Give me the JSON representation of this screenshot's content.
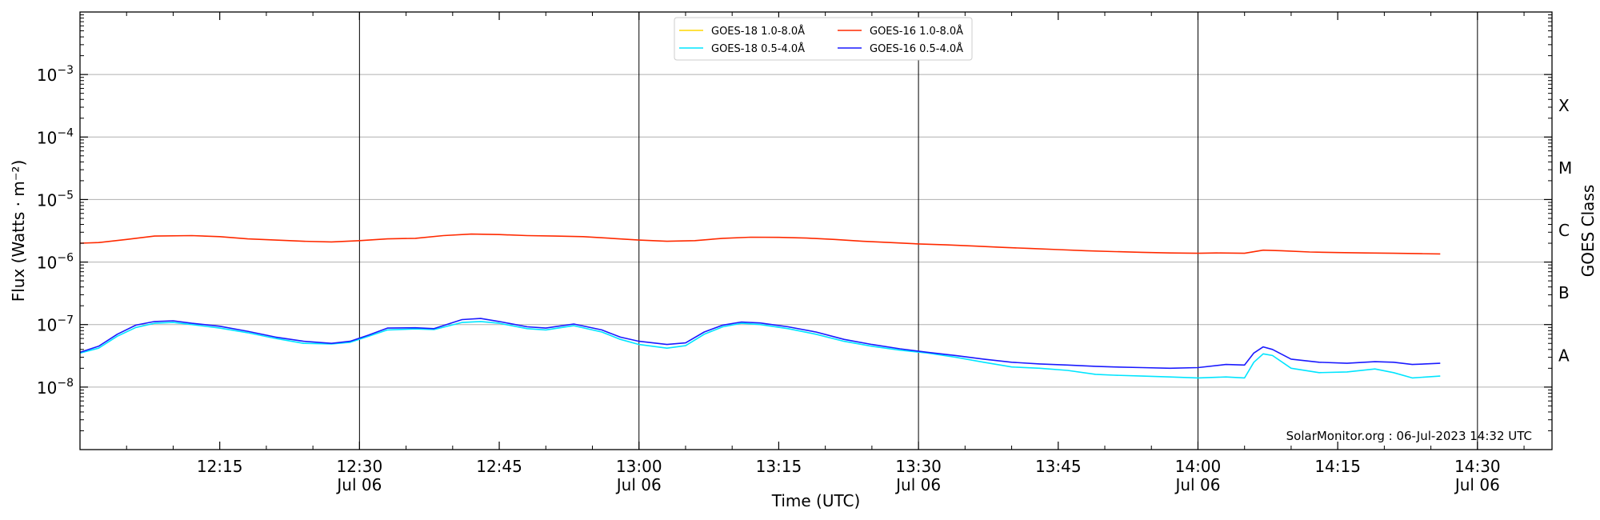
{
  "chart_data": {
    "type": "line",
    "xlabel": "Time (UTC)",
    "ylabel": "Flux (Watts · m⁻²)",
    "y2label": "GOES Class",
    "yscale": "log",
    "ylim": [
      1e-09,
      0.01
    ],
    "xlim": [
      "2023-07-06 12:00",
      "2023-07-06 14:38"
    ],
    "grid": "horizontal at each decade",
    "legend_position": "top-center",
    "credit": "SolarMonitor.org : 06-Jul-2023 14:32 UTC",
    "y_ticks": [
      {
        "value": 0.001,
        "base": "10",
        "exp": "−3"
      },
      {
        "value": 0.0001,
        "base": "10",
        "exp": "−4"
      },
      {
        "value": 1e-05,
        "base": "10",
        "exp": "−5"
      },
      {
        "value": 1e-06,
        "base": "10",
        "exp": "−6"
      },
      {
        "value": 1e-07,
        "base": "10",
        "exp": "−7"
      },
      {
        "value": 1e-08,
        "base": "10",
        "exp": "−8"
      }
    ],
    "x_ticks": [
      {
        "time": "12:15",
        "label": "12:15",
        "sub": ""
      },
      {
        "time": "12:30",
        "label": "12:30",
        "sub": "Jul 06"
      },
      {
        "time": "12:45",
        "label": "12:45",
        "sub": ""
      },
      {
        "time": "13:00",
        "label": "13:00",
        "sub": "Jul 06"
      },
      {
        "time": "13:15",
        "label": "13:15",
        "sub": ""
      },
      {
        "time": "13:30",
        "label": "13:30",
        "sub": "Jul 06"
      },
      {
        "time": "13:45",
        "label": "13:45",
        "sub": ""
      },
      {
        "time": "14:00",
        "label": "14:00",
        "sub": "Jul 06"
      },
      {
        "time": "14:15",
        "label": "14:15",
        "sub": ""
      },
      {
        "time": "14:30",
        "label": "14:30",
        "sub": "Jul 06"
      }
    ],
    "day_lines": [
      "12:30",
      "13:00",
      "13:30",
      "14:00",
      "14:30"
    ],
    "goes_classes": [
      {
        "label": "X",
        "flux": 0.0001
      },
      {
        "label": "M",
        "flux": 1e-05
      },
      {
        "label": "C",
        "flux": 1e-06
      },
      {
        "label": "B",
        "flux": 1e-07
      },
      {
        "label": "A",
        "flux": 1e-08
      }
    ],
    "series": [
      {
        "name": "GOES-18 1.0-8.0Å",
        "color": "#ffd700",
        "points": []
      },
      {
        "name": "GOES-16 1.0-8.0Å",
        "color": "#ff2a00",
        "points": [
          [
            "12:00",
            2e-06
          ],
          [
            "12:02",
            2.05e-06
          ],
          [
            "12:05",
            2.3e-06
          ],
          [
            "12:08",
            2.6e-06
          ],
          [
            "12:12",
            2.65e-06
          ],
          [
            "12:15",
            2.55e-06
          ],
          [
            "12:18",
            2.35e-06
          ],
          [
            "12:21",
            2.25e-06
          ],
          [
            "12:24",
            2.15e-06
          ],
          [
            "12:27",
            2.1e-06
          ],
          [
            "12:30",
            2.2e-06
          ],
          [
            "12:33",
            2.35e-06
          ],
          [
            "12:36",
            2.4e-06
          ],
          [
            "12:39",
            2.65e-06
          ],
          [
            "12:42",
            2.8e-06
          ],
          [
            "12:45",
            2.75e-06
          ],
          [
            "12:48",
            2.65e-06
          ],
          [
            "12:51",
            2.6e-06
          ],
          [
            "12:54",
            2.55e-06
          ],
          [
            "12:57",
            2.4e-06
          ],
          [
            "13:00",
            2.25e-06
          ],
          [
            "13:03",
            2.15e-06
          ],
          [
            "13:06",
            2.2e-06
          ],
          [
            "13:09",
            2.4e-06
          ],
          [
            "13:12",
            2.5e-06
          ],
          [
            "13:15",
            2.48e-06
          ],
          [
            "13:18",
            2.42e-06
          ],
          [
            "13:21",
            2.3e-06
          ],
          [
            "13:24",
            2.15e-06
          ],
          [
            "13:27",
            2.05e-06
          ],
          [
            "13:30",
            1.95e-06
          ],
          [
            "13:33",
            1.88e-06
          ],
          [
            "13:36",
            1.8e-06
          ],
          [
            "13:39",
            1.72e-06
          ],
          [
            "13:42",
            1.65e-06
          ],
          [
            "13:45",
            1.58e-06
          ],
          [
            "13:48",
            1.52e-06
          ],
          [
            "13:51",
            1.47e-06
          ],
          [
            "13:54",
            1.43e-06
          ],
          [
            "13:57",
            1.4e-06
          ],
          [
            "14:00",
            1.38e-06
          ],
          [
            "14:02",
            1.4e-06
          ],
          [
            "14:05",
            1.38e-06
          ],
          [
            "14:07",
            1.55e-06
          ],
          [
            "14:09",
            1.52e-06
          ],
          [
            "14:12",
            1.45e-06
          ],
          [
            "14:15",
            1.42e-06
          ],
          [
            "14:18",
            1.4e-06
          ],
          [
            "14:21",
            1.38e-06
          ],
          [
            "14:24",
            1.36e-06
          ],
          [
            "14:26",
            1.35e-06
          ]
        ]
      },
      {
        "name": "GOES-18 0.5-4.0Å",
        "color": "#00e5ff",
        "points": [
          [
            "12:00",
            3.5e-08
          ],
          [
            "12:02",
            4.2e-08
          ],
          [
            "12:04",
            6.5e-08
          ],
          [
            "12:06",
            9e-08
          ],
          [
            "12:08",
            1.05e-07
          ],
          [
            "12:10",
            1.08e-07
          ],
          [
            "12:12",
            1e-07
          ],
          [
            "12:15",
            8.8e-08
          ],
          [
            "12:18",
            7.4e-08
          ],
          [
            "12:21",
            6e-08
          ],
          [
            "12:24",
            5e-08
          ],
          [
            "12:27",
            4.9e-08
          ],
          [
            "12:29",
            5.2e-08
          ],
          [
            "12:31",
            6.5e-08
          ],
          [
            "12:33",
            8.2e-08
          ],
          [
            "12:36",
            8.5e-08
          ],
          [
            "12:38",
            8.3e-08
          ],
          [
            "12:41",
            1.08e-07
          ],
          [
            "12:43",
            1.12e-07
          ],
          [
            "12:45",
            1.05e-07
          ],
          [
            "12:48",
            8.6e-08
          ],
          [
            "12:50",
            8.2e-08
          ],
          [
            "12:53",
            9.6e-08
          ],
          [
            "12:56",
            7.6e-08
          ],
          [
            "12:58",
            5.8e-08
          ],
          [
            "13:00",
            4.8e-08
          ],
          [
            "13:03",
            4.2e-08
          ],
          [
            "13:05",
            4.6e-08
          ],
          [
            "13:07",
            7e-08
          ],
          [
            "13:09",
            9.2e-08
          ],
          [
            "13:11",
            1.05e-07
          ],
          [
            "13:13",
            1e-07
          ],
          [
            "13:16",
            8.6e-08
          ],
          [
            "13:19",
            7e-08
          ],
          [
            "13:22",
            5.4e-08
          ],
          [
            "13:25",
            4.5e-08
          ],
          [
            "13:28",
            3.9e-08
          ],
          [
            "13:31",
            3.5e-08
          ],
          [
            "13:34",
            3e-08
          ],
          [
            "13:37",
            2.5e-08
          ],
          [
            "13:40",
            2.1e-08
          ],
          [
            "13:43",
            2e-08
          ],
          [
            "13:46",
            1.85e-08
          ],
          [
            "13:49",
            1.6e-08
          ],
          [
            "13:51",
            1.55e-08
          ],
          [
            "13:54",
            1.5e-08
          ],
          [
            "13:57",
            1.45e-08
          ],
          [
            "14:00",
            1.4e-08
          ],
          [
            "14:03",
            1.45e-08
          ],
          [
            "14:05",
            1.4e-08
          ],
          [
            "14:06",
            2.5e-08
          ],
          [
            "14:07",
            3.4e-08
          ],
          [
            "14:08",
            3.2e-08
          ],
          [
            "14:10",
            2e-08
          ],
          [
            "14:13",
            1.7e-08
          ],
          [
            "14:16",
            1.75e-08
          ],
          [
            "14:19",
            1.95e-08
          ],
          [
            "14:21",
            1.7e-08
          ],
          [
            "14:23",
            1.4e-08
          ],
          [
            "14:26",
            1.5e-08
          ]
        ]
      },
      {
        "name": "GOES-16 0.5-4.0Å",
        "color": "#1a1aff",
        "points": [
          [
            "12:00",
            3.6e-08
          ],
          [
            "12:02",
            4.5e-08
          ],
          [
            "12:04",
            7e-08
          ],
          [
            "12:06",
            9.8e-08
          ],
          [
            "12:08",
            1.12e-07
          ],
          [
            "12:10",
            1.15e-07
          ],
          [
            "12:12",
            1.05e-07
          ],
          [
            "12:15",
            9.4e-08
          ],
          [
            "12:18",
            7.8e-08
          ],
          [
            "12:21",
            6.3e-08
          ],
          [
            "12:24",
            5.4e-08
          ],
          [
            "12:27",
            5e-08
          ],
          [
            "12:29",
            5.4e-08
          ],
          [
            "12:31",
            6.8e-08
          ],
          [
            "12:33",
            8.8e-08
          ],
          [
            "12:36",
            8.9e-08
          ],
          [
            "12:38",
            8.6e-08
          ],
          [
            "12:41",
            1.2e-07
          ],
          [
            "12:43",
            1.25e-07
          ],
          [
            "12:45",
            1.12e-07
          ],
          [
            "12:48",
            9.2e-08
          ],
          [
            "12:50",
            8.8e-08
          ],
          [
            "12:53",
            1.02e-07
          ],
          [
            "12:56",
            8.2e-08
          ],
          [
            "12:58",
            6.3e-08
          ],
          [
            "13:00",
            5.4e-08
          ],
          [
            "13:03",
            4.8e-08
          ],
          [
            "13:05",
            5.1e-08
          ],
          [
            "13:07",
            7.6e-08
          ],
          [
            "13:09",
            9.8e-08
          ],
          [
            "13:11",
            1.1e-07
          ],
          [
            "13:13",
            1.06e-07
          ],
          [
            "13:16",
            9.2e-08
          ],
          [
            "13:19",
            7.6e-08
          ],
          [
            "13:22",
            5.8e-08
          ],
          [
            "13:25",
            4.8e-08
          ],
          [
            "13:28",
            4.1e-08
          ],
          [
            "13:31",
            3.6e-08
          ],
          [
            "13:34",
            3.2e-08
          ],
          [
            "13:37",
            2.8e-08
          ],
          [
            "13:40",
            2.5e-08
          ],
          [
            "13:43",
            2.35e-08
          ],
          [
            "13:46",
            2.25e-08
          ],
          [
            "13:49",
            2.15e-08
          ],
          [
            "13:51",
            2.1e-08
          ],
          [
            "13:54",
            2.05e-08
          ],
          [
            "13:57",
            2e-08
          ],
          [
            "14:00",
            2.05e-08
          ],
          [
            "14:03",
            2.3e-08
          ],
          [
            "14:05",
            2.25e-08
          ],
          [
            "14:06",
            3.5e-08
          ],
          [
            "14:07",
            4.4e-08
          ],
          [
            "14:08",
            4e-08
          ],
          [
            "14:10",
            2.8e-08
          ],
          [
            "14:13",
            2.5e-08
          ],
          [
            "14:16",
            2.4e-08
          ],
          [
            "14:19",
            2.55e-08
          ],
          [
            "14:21",
            2.5e-08
          ],
          [
            "14:23",
            2.3e-08
          ],
          [
            "14:26",
            2.4e-08
          ]
        ]
      }
    ]
  }
}
